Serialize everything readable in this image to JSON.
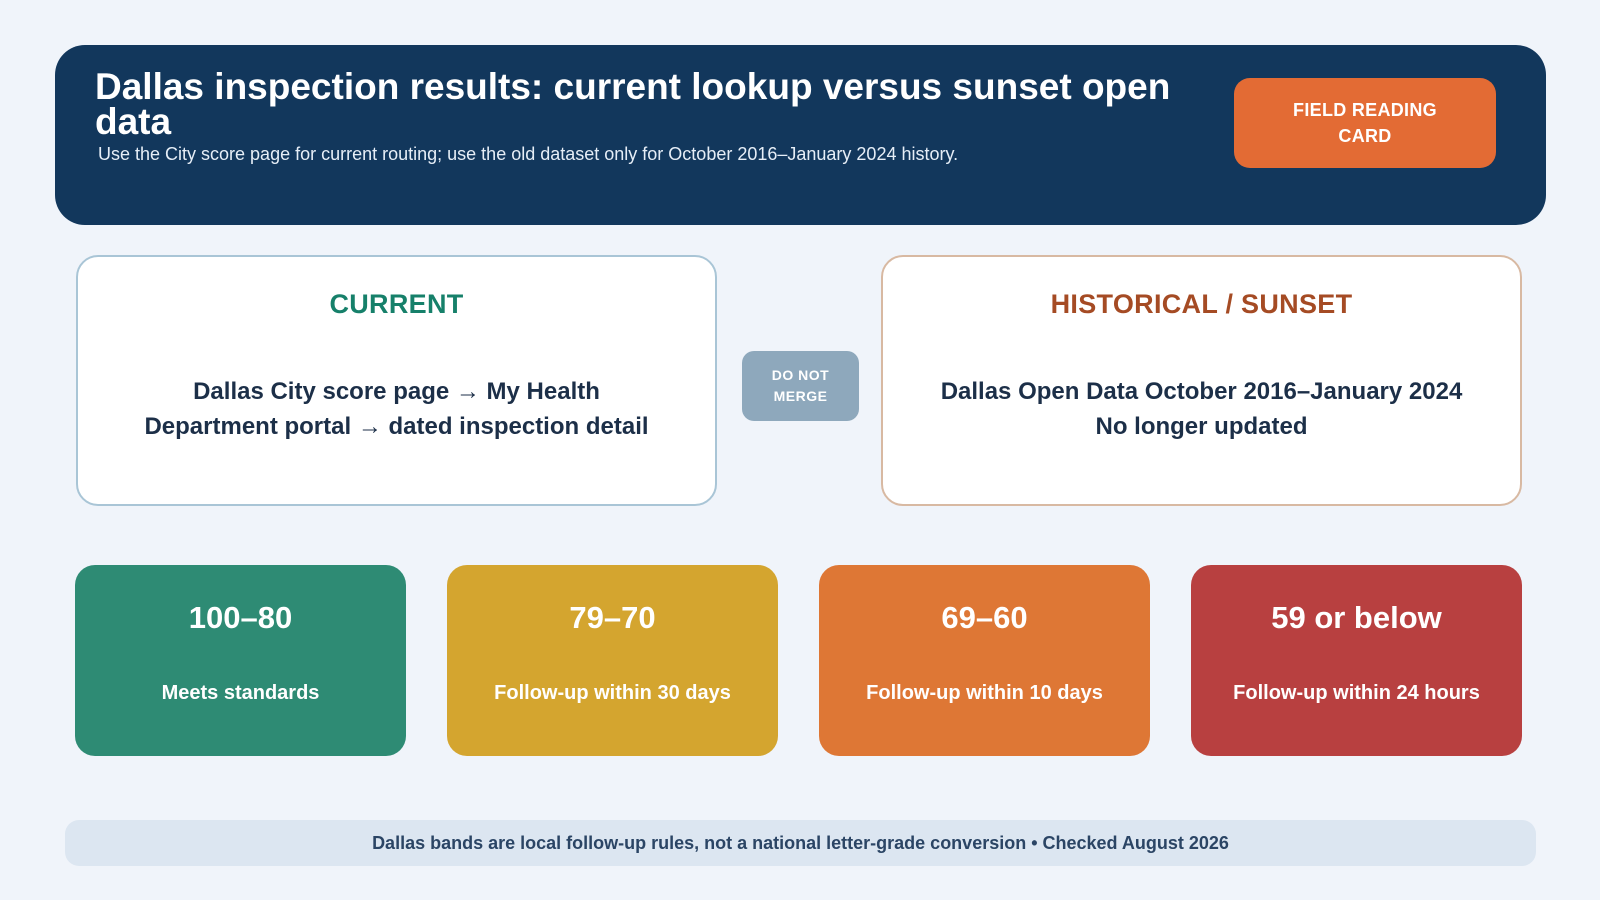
{
  "header": {
    "title": "Dallas inspection results: current lookup versus sunset open data",
    "subtitle": "Use the City score page for current routing; use the old dataset only for October 2016–January 2024 history.",
    "field_card_label": "FIELD READING CARD"
  },
  "colors": {
    "header_bg": "#12375c",
    "accent_orange": "#e36b34",
    "current_heading": "#16806a",
    "historical_heading": "#a54b24",
    "do_not_merge_bg": "#8ea8bc"
  },
  "panels": {
    "current": {
      "heading": "CURRENT",
      "line1": "Dallas City score page → My Health",
      "line2": "Department portal → dated inspection detail"
    },
    "historical": {
      "heading": "HISTORICAL / SUNSET",
      "line1": "Dallas Open Data October 2016–January 2024",
      "line2": "No longer updated"
    },
    "divider_label": "DO NOT MERGE"
  },
  "bands": [
    {
      "range": "100–80",
      "label": "Meets standards",
      "color": "#2e8b74"
    },
    {
      "range": "79–70",
      "label": "Follow-up within 30 days",
      "color": "#d4a52f"
    },
    {
      "range": "69–60",
      "label": "Follow-up within 10 days",
      "color": "#de7735"
    },
    {
      "range": "59 or below",
      "label": "Follow-up within 24 hours",
      "color": "#b84040"
    }
  ],
  "footer": {
    "note": "Dallas bands are local follow-up rules, not a national letter-grade conversion • Checked August 2026"
  }
}
